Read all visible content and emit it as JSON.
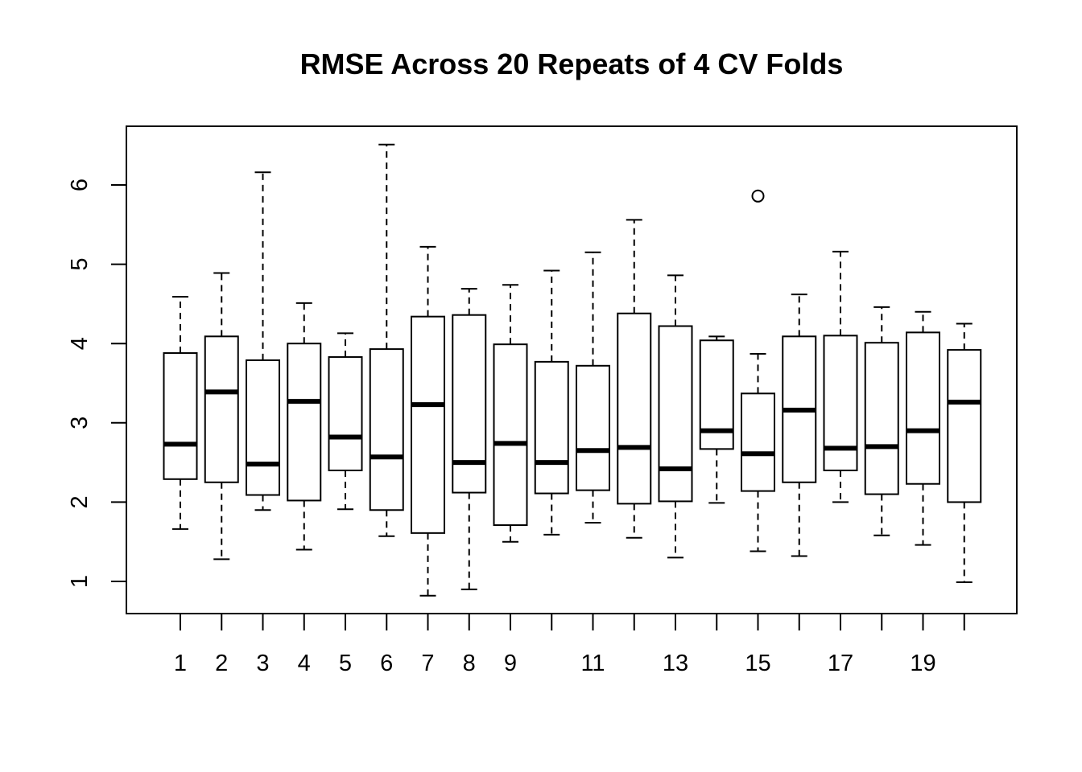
{
  "chart_data": {
    "type": "boxplot",
    "title": "RMSE Across 20 Repeats of 4 CV Folds",
    "xlabel": "",
    "ylabel": "",
    "ylim": [
      0.6,
      6.75
    ],
    "y_ticks": [
      1,
      2,
      3,
      4,
      5,
      6
    ],
    "categories": [
      "1",
      "2",
      "3",
      "4",
      "5",
      "6",
      "7",
      "8",
      "9",
      "10",
      "11",
      "12",
      "13",
      "14",
      "15",
      "16",
      "17",
      "18",
      "19",
      "20"
    ],
    "x_tick_labels_shown": [
      "1",
      "2",
      "3",
      "4",
      "5",
      "6",
      "7",
      "8",
      "9",
      "",
      "11",
      "",
      "13",
      "",
      "15",
      "",
      "17",
      "",
      "19",
      ""
    ],
    "boxes": [
      {
        "category": "1",
        "whisker_low": 1.66,
        "q1": 2.29,
        "median": 2.73,
        "q3": 3.88,
        "whisker_high": 4.59,
        "outliers": []
      },
      {
        "category": "2",
        "whisker_low": 1.28,
        "q1": 2.25,
        "median": 3.39,
        "q3": 4.09,
        "whisker_high": 4.89,
        "outliers": []
      },
      {
        "category": "3",
        "whisker_low": 1.9,
        "q1": 2.09,
        "median": 2.48,
        "q3": 3.79,
        "whisker_high": 6.16,
        "outliers": []
      },
      {
        "category": "4",
        "whisker_low": 1.4,
        "q1": 2.02,
        "median": 3.27,
        "q3": 4.0,
        "whisker_high": 4.51,
        "outliers": []
      },
      {
        "category": "5",
        "whisker_low": 1.91,
        "q1": 2.4,
        "median": 2.82,
        "q3": 3.83,
        "whisker_high": 4.13,
        "outliers": []
      },
      {
        "category": "6",
        "whisker_low": 1.57,
        "q1": 1.9,
        "median": 2.57,
        "q3": 3.93,
        "whisker_high": 6.51,
        "outliers": []
      },
      {
        "category": "7",
        "whisker_low": 0.82,
        "q1": 1.61,
        "median": 3.23,
        "q3": 4.34,
        "whisker_high": 5.22,
        "outliers": []
      },
      {
        "category": "8",
        "whisker_low": 0.9,
        "q1": 2.12,
        "median": 2.5,
        "q3": 4.36,
        "whisker_high": 4.69,
        "outliers": []
      },
      {
        "category": "9",
        "whisker_low": 1.5,
        "q1": 1.71,
        "median": 2.74,
        "q3": 3.99,
        "whisker_high": 4.74,
        "outliers": []
      },
      {
        "category": "10",
        "whisker_low": 1.59,
        "q1": 2.11,
        "median": 2.5,
        "q3": 3.77,
        "whisker_high": 4.92,
        "outliers": []
      },
      {
        "category": "11",
        "whisker_low": 1.74,
        "q1": 2.15,
        "median": 2.65,
        "q3": 3.72,
        "whisker_high": 5.15,
        "outliers": []
      },
      {
        "category": "12",
        "whisker_low": 1.55,
        "q1": 1.98,
        "median": 2.69,
        "q3": 4.38,
        "whisker_high": 5.56,
        "outliers": []
      },
      {
        "category": "13",
        "whisker_low": 1.3,
        "q1": 2.01,
        "median": 2.42,
        "q3": 4.22,
        "whisker_high": 4.86,
        "outliers": []
      },
      {
        "category": "14",
        "whisker_low": 1.99,
        "q1": 2.67,
        "median": 2.9,
        "q3": 4.04,
        "whisker_high": 4.09,
        "outliers": []
      },
      {
        "category": "15",
        "whisker_low": 1.38,
        "q1": 2.14,
        "median": 2.61,
        "q3": 3.37,
        "whisker_high": 3.87,
        "outliers": [
          5.86
        ]
      },
      {
        "category": "16",
        "whisker_low": 1.32,
        "q1": 2.25,
        "median": 3.16,
        "q3": 4.09,
        "whisker_high": 4.62,
        "outliers": []
      },
      {
        "category": "17",
        "whisker_low": 2.0,
        "q1": 2.4,
        "median": 2.68,
        "q3": 4.1,
        "whisker_high": 5.16,
        "outliers": []
      },
      {
        "category": "18",
        "whisker_low": 1.58,
        "q1": 2.1,
        "median": 2.7,
        "q3": 4.01,
        "whisker_high": 4.46,
        "outliers": []
      },
      {
        "category": "19",
        "whisker_low": 1.46,
        "q1": 2.23,
        "median": 2.9,
        "q3": 4.14,
        "whisker_high": 4.4,
        "outliers": []
      },
      {
        "category": "20",
        "whisker_low": 0.99,
        "q1": 2.0,
        "median": 3.26,
        "q3": 3.92,
        "whisker_high": 4.25,
        "outliers": []
      }
    ],
    "grid": false,
    "legend": "none",
    "colors": {
      "stroke": "#000000",
      "fill": "#ffffff",
      "background": "#ffffff"
    }
  }
}
